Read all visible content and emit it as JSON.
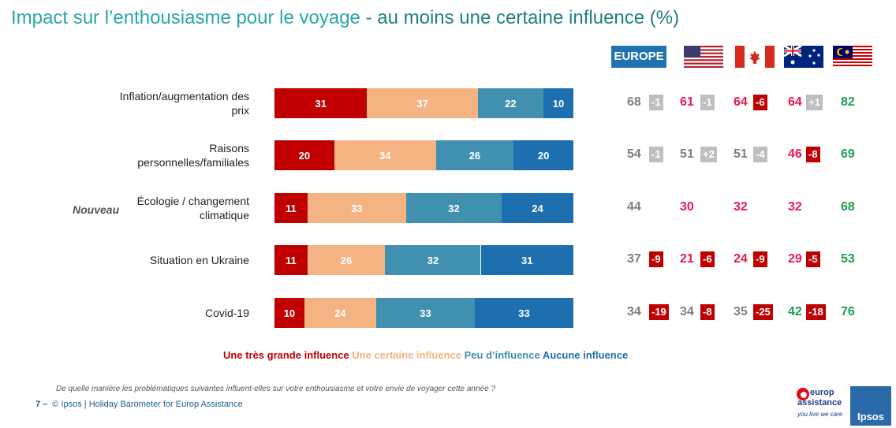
{
  "title": {
    "part1": "Impact sur l’enthousiasme pour le voyage",
    "part2": " - au moins une certaine influence (%)"
  },
  "headers": {
    "europe": "EUROPE",
    "flags": [
      "us-flag-icon",
      "canada-flag-icon",
      "australia-flag-icon",
      "malaysia-flag-icon"
    ]
  },
  "nouveau": "Nouveau",
  "colors": {
    "very": "#c00000",
    "some": "#f3b383",
    "little": "#4290b0",
    "none": "#1e6fb0",
    "red": "#e8194e",
    "green": "#1aa04f",
    "grey": "#7f7f7f",
    "chg_grey": "#bfbfbf",
    "chg_red": "#c00000"
  },
  "chart_data": {
    "type": "bar",
    "stacked": true,
    "orientation": "horizontal",
    "categories": [
      "Inflation/augmentation des prix",
      "Raisons personnelles/familiales",
      "Écologie / changement climatique",
      "Situation en Ukraine",
      "Covid-19"
    ],
    "series": [
      {
        "name": "Une très grande influence",
        "values": [
          31,
          20,
          11,
          11,
          10
        ]
      },
      {
        "name": "Une certaine influence",
        "values": [
          37,
          34,
          33,
          26,
          24
        ]
      },
      {
        "name": "Peu d’influence",
        "values": [
          22,
          26,
          32,
          32,
          33
        ]
      },
      {
        "name": "Aucune influence",
        "values": [
          10,
          20,
          24,
          31,
          33
        ]
      }
    ],
    "totals": {
      "europe": {
        "values": [
          "68",
          "54",
          "44",
          "37",
          "34"
        ],
        "changes": [
          "-1",
          "-1",
          "",
          "-9",
          "-19"
        ],
        "change_style": [
          "grey",
          "grey",
          "",
          "red",
          "red"
        ],
        "value_style": [
          "grey",
          "grey",
          "grey",
          "grey",
          "grey"
        ]
      },
      "us": {
        "values": [
          "61",
          "51",
          "30",
          "21",
          "34"
        ],
        "changes": [
          "-1",
          "+2",
          "",
          "-6",
          "-8"
        ],
        "change_style": [
          "grey",
          "grey",
          "",
          "red",
          "red"
        ],
        "value_style": [
          "red",
          "grey",
          "red",
          "red",
          "grey"
        ]
      },
      "canada": {
        "values": [
          "64",
          "51",
          "32",
          "24",
          "35"
        ],
        "changes": [
          "-6",
          "-4",
          "",
          "-9",
          "-25"
        ],
        "change_style": [
          "red",
          "grey",
          "",
          "red",
          "red"
        ],
        "value_style": [
          "red",
          "grey",
          "red",
          "red",
          "grey"
        ]
      },
      "australia": {
        "values": [
          "64",
          "46",
          "32",
          "29",
          "42"
        ],
        "changes": [
          "+1",
          "-8",
          "",
          "-5",
          "-18"
        ],
        "change_style": [
          "grey",
          "red",
          "",
          "red",
          "red"
        ],
        "value_style": [
          "red",
          "red",
          "red",
          "red",
          "green"
        ]
      },
      "malaysia": {
        "values": [
          "82",
          "69",
          "68",
          "53",
          "76"
        ],
        "changes": [
          "",
          "",
          "",
          "",
          ""
        ],
        "change_style": [
          "",
          "",
          "",
          "",
          ""
        ],
        "value_style": [
          "green",
          "green",
          "green",
          "green",
          "green"
        ]
      }
    }
  },
  "legend": {
    "very": "Une très grande influence",
    "some": "Une certaine influence",
    "little": "Peu d’influence",
    "none": "Aucune influence"
  },
  "footnote": "De quelle manière les problématiques suivantes influent-elles sur votre enthousiasme et votre envie de voyager cette année ?",
  "footer": {
    "page": "7 –",
    "text": "© Ipsos | Holiday Barometer for Europ Assistance"
  },
  "logos": {
    "ea_line1": "europ",
    "ea_line2": "assistance",
    "ea_tag": "you live we care",
    "ipsos": "Ipsos"
  }
}
